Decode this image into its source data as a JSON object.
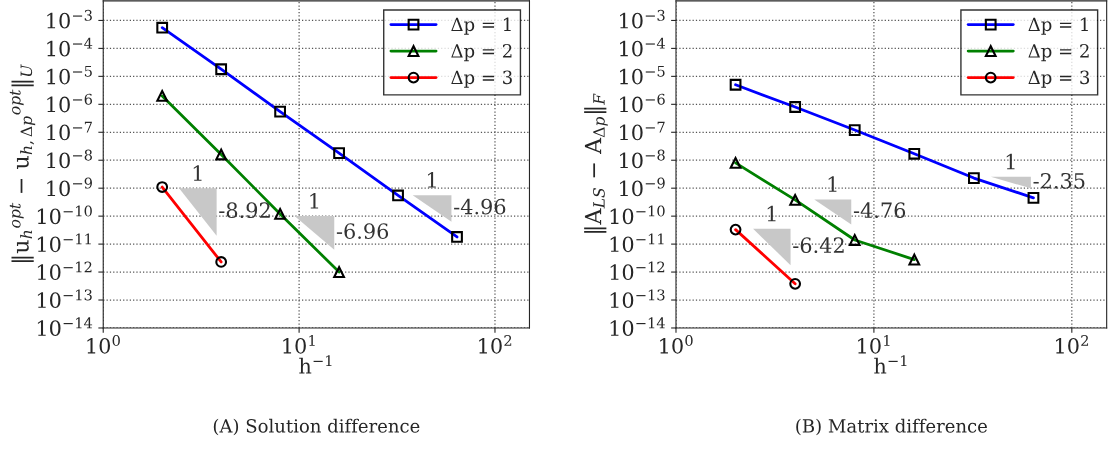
{
  "chart_data": [
    {
      "type": "line",
      "title": "(A) Solution difference",
      "xlabel": "h$^{−1}$",
      "ylabel": "‖u$_{h}$$^{opt}$ − u$_{h,Δp}$$^{opt}$‖$_{U}$",
      "log": "xy",
      "grid": true,
      "legend": "top right",
      "xlim": [
        1,
        150
      ],
      "xticks": [
        {
          "value": 1,
          "label": "10$^{0}$"
        },
        {
          "value": 10,
          "label": "10$^{1}$"
        },
        {
          "value": 100,
          "label": "10$^{2}$"
        }
      ],
      "ylim": [
        1e-14,
        0.005
      ],
      "yticks": [
        {
          "value": 1e-14,
          "label": "10$^{−14}$"
        },
        {
          "value": 1e-13,
          "label": "10$^{−13}$"
        },
        {
          "value": 1e-12,
          "label": "10$^{−12}$"
        },
        {
          "value": 1e-11,
          "label": "10$^{−11}$"
        },
        {
          "value": 1e-10,
          "label": "10$^{−10}$"
        },
        {
          "value": 1e-09,
          "label": "10$^{−9}$"
        },
        {
          "value": 1e-08,
          "label": "10$^{−8}$"
        },
        {
          "value": 1e-07,
          "label": "10$^{−7}$"
        },
        {
          "value": 1e-06,
          "label": "10$^{−6}$"
        },
        {
          "value": 1e-05,
          "label": "10$^{−5}$"
        },
        {
          "value": 0.0001,
          "label": "10$^{−4}$"
        },
        {
          "value": 0.001,
          "label": "10$^{−3}$"
        }
      ],
      "series": [
        {
          "name": "Δp = 1",
          "color": "#0000ff",
          "marker": "square",
          "x": [
            2,
            4,
            8,
            16,
            32,
            64
          ],
          "values": [
            0.00055,
            1.8e-05,
            5.5e-07,
            1.8e-08,
            5.5e-10,
            1.8e-11
          ]
        },
        {
          "name": "Δp = 2",
          "color": "#008000",
          "marker": "triangle",
          "x": [
            2,
            4,
            8,
            16
          ],
          "values": [
            2e-06,
            1.6e-08,
            1.2e-10,
            1e-12
          ]
        },
        {
          "name": "Δp = 3",
          "color": "#ff0000",
          "marker": "circle",
          "x": [
            2,
            4
          ],
          "values": [
            1.1e-09,
            2.3e-12
          ]
        }
      ],
      "annotations": [
        "1",
        "-8.92",
        "1",
        "-6.96",
        "1",
        "-4.96"
      ]
    },
    {
      "type": "line",
      "title": "(B) Matrix difference",
      "xlabel": "h$^{−1}$",
      "ylabel": "‖A$_{LS}$ − A$_{Δp}$‖$_{F}$",
      "log": "xy",
      "grid": true,
      "legend": "top right",
      "xlim": [
        1,
        150
      ],
      "xticks": [
        {
          "value": 1,
          "label": "10$^{0}$"
        },
        {
          "value": 10,
          "label": "10$^{1}$"
        },
        {
          "value": 100,
          "label": "10$^{2}$"
        }
      ],
      "ylim": [
        1e-14,
        0.005
      ],
      "yticks": [
        {
          "value": 1e-14,
          "label": "10$^{−14}$"
        },
        {
          "value": 1e-13,
          "label": "10$^{−13}$"
        },
        {
          "value": 1e-12,
          "label": "10$^{−12}$"
        },
        {
          "value": 1e-11,
          "label": "10$^{−11}$"
        },
        {
          "value": 1e-10,
          "label": "10$^{−10}$"
        },
        {
          "value": 1e-09,
          "label": "10$^{−9}$"
        },
        {
          "value": 1e-08,
          "label": "10$^{−8}$"
        },
        {
          "value": 1e-07,
          "label": "10$^{−7}$"
        },
        {
          "value": 1e-06,
          "label": "10$^{−6}$"
        },
        {
          "value": 1e-05,
          "label": "10$^{−5}$"
        },
        {
          "value": 0.0001,
          "label": "10$^{−4}$"
        },
        {
          "value": 0.001,
          "label": "10$^{−3}$"
        }
      ],
      "series": [
        {
          "name": "Δp = 1",
          "color": "#0000ff",
          "marker": "square",
          "x": [
            2,
            4,
            8,
            16,
            32,
            64
          ],
          "values": [
            5e-06,
            8e-07,
            1.2e-07,
            1.7e-08,
            2.3e-09,
            4.5e-10
          ]
        },
        {
          "name": "Δp = 2",
          "color": "#008000",
          "marker": "triangle",
          "x": [
            2,
            4,
            8,
            16
          ],
          "values": [
            8e-09,
            3.8e-10,
            1.4e-11,
            2.8e-12
          ]
        },
        {
          "name": "Δp = 3",
          "color": "#ff0000",
          "marker": "circle",
          "x": [
            2,
            4
          ],
          "values": [
            3.3e-11,
            3.8e-13
          ]
        }
      ],
      "annotations": [
        "1",
        "-6.42",
        "1",
        "-4.76",
        "1",
        "-2.35"
      ]
    }
  ]
}
